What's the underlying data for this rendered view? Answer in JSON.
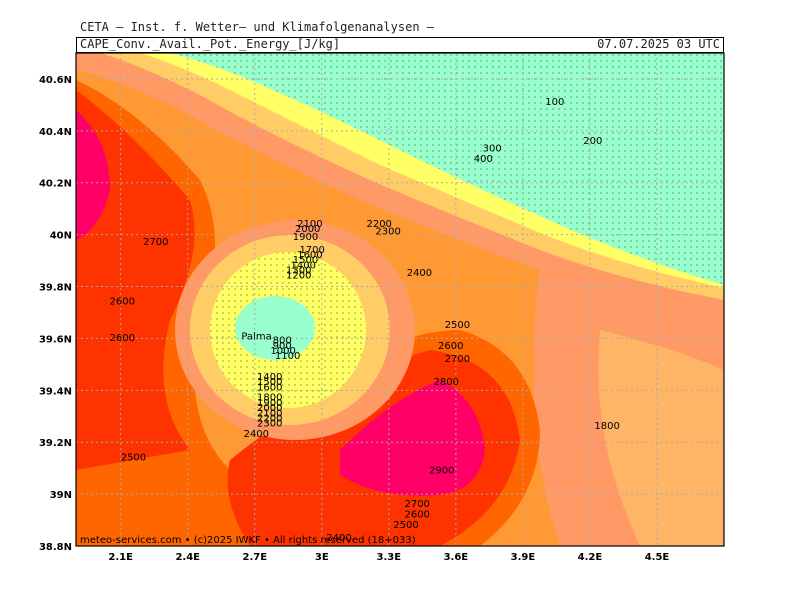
{
  "header": {
    "title": "CETA — Inst. f. Wetter— und Klimafolgenanalysen —",
    "field": "CAPE_Conv._Avail._Pot._Energy_[J/kg]",
    "valid_time": "07.07.2025 03 UTC"
  },
  "footer": {
    "credit": "meteo-services.com • (c)2025 IWKF • All rights reserved (18+033)"
  },
  "map": {
    "lon_range": [
      1.9,
      4.8
    ],
    "lat_range": [
      38.8,
      40.7
    ],
    "lat_ticks": [
      "40.6N",
      "40.4N",
      "40.2N",
      "40N",
      "39.8N",
      "39.6N",
      "39.4N",
      "39.2N",
      "39N",
      "38.8N"
    ],
    "lon_ticks": [
      "2.1E",
      "2.4E",
      "2.7E",
      "3E",
      "3.3E",
      "3.6E",
      "3.9E",
      "4.2E",
      "4.5E"
    ],
    "place_label": "Palma",
    "colors": {
      "lowest": "#99ffcc",
      "yellow": "#ffff66",
      "pale_orange": "#ffcc66",
      "salmon": "#ff9966",
      "orange": "#ff9933",
      "dark_orange": "#ff6600",
      "red": "#ff3300",
      "magenta": "#ff0066",
      "grid": "#aaaaaa"
    },
    "contour_labels": [
      {
        "text": "100",
        "lon": 4.0,
        "lat": 40.5
      },
      {
        "text": "200",
        "lon": 4.17,
        "lat": 40.35
      },
      {
        "text": "300",
        "lon": 3.72,
        "lat": 40.32
      },
      {
        "text": "400",
        "lon": 3.68,
        "lat": 40.28
      },
      {
        "text": "2100",
        "lon": 2.89,
        "lat": 40.03
      },
      {
        "text": "2000",
        "lon": 2.88,
        "lat": 40.01
      },
      {
        "text": "1900",
        "lon": 2.87,
        "lat": 39.98
      },
      {
        "text": "1700",
        "lon": 2.9,
        "lat": 39.93
      },
      {
        "text": "1600",
        "lon": 2.89,
        "lat": 39.91
      },
      {
        "text": "1500",
        "lon": 2.87,
        "lat": 39.89
      },
      {
        "text": "1400",
        "lon": 2.86,
        "lat": 39.87
      },
      {
        "text": "1300",
        "lon": 2.84,
        "lat": 39.85
      },
      {
        "text": "1200",
        "lon": 2.84,
        "lat": 39.83
      },
      {
        "text": "2200",
        "lon": 3.2,
        "lat": 40.03
      },
      {
        "text": "2300",
        "lon": 3.24,
        "lat": 40.0
      },
      {
        "text": "2400",
        "lon": 3.38,
        "lat": 39.84
      },
      {
        "text": "2500",
        "lon": 3.55,
        "lat": 39.64
      },
      {
        "text": "2600",
        "lon": 3.52,
        "lat": 39.56
      },
      {
        "text": "2700",
        "lon": 3.55,
        "lat": 39.51
      },
      {
        "text": "2800",
        "lon": 3.5,
        "lat": 39.42
      },
      {
        "text": "2700",
        "lon": 2.2,
        "lat": 39.96
      },
      {
        "text": "2600",
        "lon": 2.05,
        "lat": 39.73
      },
      {
        "text": "2600",
        "lon": 2.05,
        "lat": 39.59
      },
      {
        "text": "2500",
        "lon": 2.1,
        "lat": 39.13
      },
      {
        "text": "800",
        "lon": 2.78,
        "lat": 39.58
      },
      {
        "text": "900",
        "lon": 2.78,
        "lat": 39.56
      },
      {
        "text": "1000",
        "lon": 2.77,
        "lat": 39.54
      },
      {
        "text": "1100",
        "lon": 2.79,
        "lat": 39.52
      },
      {
        "text": "1400",
        "lon": 2.71,
        "lat": 39.44
      },
      {
        "text": "1500",
        "lon": 2.71,
        "lat": 39.42
      },
      {
        "text": "1600",
        "lon": 2.71,
        "lat": 39.4
      },
      {
        "text": "1800",
        "lon": 2.71,
        "lat": 39.36
      },
      {
        "text": "1900",
        "lon": 2.71,
        "lat": 39.34
      },
      {
        "text": "2000",
        "lon": 2.71,
        "lat": 39.32
      },
      {
        "text": "2100",
        "lon": 2.71,
        "lat": 39.3
      },
      {
        "text": "2200",
        "lon": 2.71,
        "lat": 39.28
      },
      {
        "text": "2300",
        "lon": 2.71,
        "lat": 39.26
      },
      {
        "text": "2400",
        "lon": 2.65,
        "lat": 39.22
      },
      {
        "text": "2900",
        "lon": 3.48,
        "lat": 39.08
      },
      {
        "text": "2700",
        "lon": 3.37,
        "lat": 38.95
      },
      {
        "text": "2600",
        "lon": 3.37,
        "lat": 38.91
      },
      {
        "text": "2500",
        "lon": 3.32,
        "lat": 38.87
      },
      {
        "text": "1800",
        "lon": 4.22,
        "lat": 39.25
      },
      {
        "text": "2400",
        "lon": 3.02,
        "lat": 38.82
      }
    ]
  }
}
